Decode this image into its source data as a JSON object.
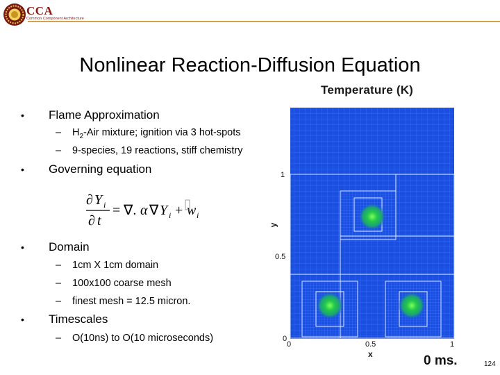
{
  "header": {
    "logo_text": "CCA",
    "logo_subtitle": "Common Component Architecture"
  },
  "title": "Nonlinear Reaction-Diffusion Equation",
  "bullets": [
    {
      "label": "Flame Approximation",
      "subitems": [
        {
          "pre": "H",
          "subscript": "2",
          "post": "-Air mixture; ignition via 3 hot-spots"
        },
        {
          "pre": "9-species, 19 reactions, stiff chemistry",
          "subscript": "",
          "post": ""
        }
      ]
    },
    {
      "label": "Governing equation",
      "subitems": []
    },
    {
      "label": "Domain",
      "subitems": [
        {
          "pre": "1cm X 1cm domain",
          "subscript": "",
          "post": ""
        },
        {
          "pre": "100x100 coarse mesh",
          "subscript": "",
          "post": ""
        },
        {
          "pre": "finest mesh = 12.5 micron.",
          "subscript": "",
          "post": ""
        }
      ]
    },
    {
      "label": "Timescales",
      "subitems": [
        {
          "pre": "O(10ns) to O(10 microseconds)",
          "subscript": "",
          "post": ""
        }
      ]
    }
  ],
  "bullet_symbol": "•",
  "dash_symbol": "–",
  "figure": {
    "title": "Temperature (K)",
    "y_ticks": [
      "1",
      "0.5",
      "0"
    ],
    "x_ticks": [
      "0",
      "0.5",
      "1"
    ],
    "x_label": "x",
    "y_label": "y",
    "time_label": "0 ms.",
    "colors": {
      "field": "#1a4fe0",
      "hotspot": "#22c84a",
      "grid": "#6f9cff"
    }
  },
  "page_number": "124"
}
